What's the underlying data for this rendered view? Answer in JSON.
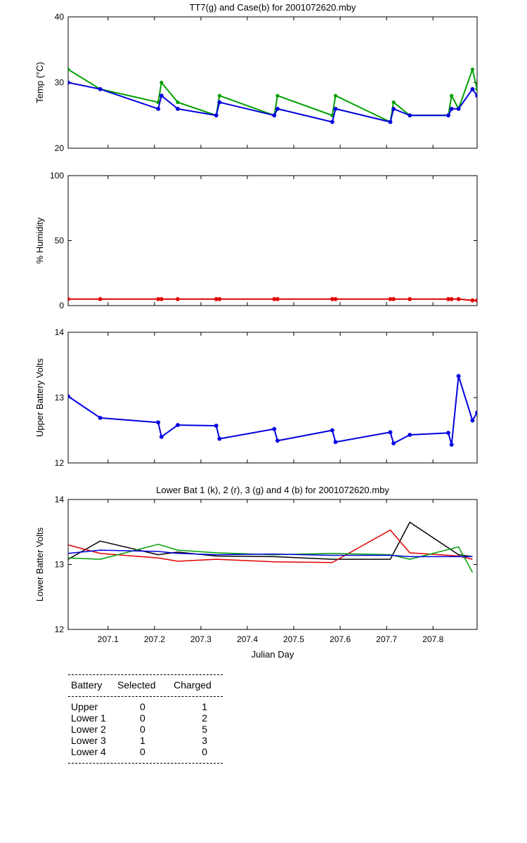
{
  "chart_data": [
    {
      "type": "line",
      "title": "TT7(g) and Case(b) for 2001072620.mby",
      "xlabel": "",
      "ylabel": "Temp  (°C)",
      "xlim": [
        207.014,
        207.895
      ],
      "ylim": [
        20,
        40
      ],
      "yticks": [
        20,
        30,
        40
      ],
      "xticks": [],
      "grid": false,
      "series": [
        {
          "color": "#00a000",
          "marker": "dot",
          "x": [
            207.014,
            207.083,
            207.208,
            207.215,
            207.25,
            207.333,
            207.34,
            207.458,
            207.465,
            207.583,
            207.59,
            207.708,
            207.715,
            207.75,
            207.833,
            207.84,
            207.855,
            207.885,
            207.895
          ],
          "y": [
            32,
            29,
            27,
            30,
            27,
            25,
            28,
            25,
            28,
            25,
            28,
            24,
            27,
            25,
            25,
            28,
            26,
            32,
            29
          ]
        },
        {
          "color": "#0000e0",
          "marker": "star",
          "x": [
            207.014,
            207.083,
            207.208,
            207.215,
            207.25,
            207.333,
            207.34,
            207.458,
            207.465,
            207.583,
            207.59,
            207.708,
            207.715,
            207.75,
            207.833,
            207.84,
            207.855,
            207.885,
            207.895
          ],
          "y": [
            30,
            29,
            26,
            28,
            26,
            25,
            27,
            25,
            26,
            24,
            26,
            24,
            26,
            25,
            25,
            26,
            26,
            29,
            28
          ]
        }
      ]
    },
    {
      "type": "line",
      "title": "",
      "xlabel": "",
      "ylabel": "% Humidity",
      "xlim": [
        207.014,
        207.895
      ],
      "ylim": [
        0,
        100
      ],
      "yticks": [
        0,
        50,
        100
      ],
      "xticks": [],
      "grid": false,
      "series": [
        {
          "color": "#e00000",
          "marker": "star",
          "x": [
            207.014,
            207.083,
            207.208,
            207.215,
            207.25,
            207.333,
            207.34,
            207.458,
            207.465,
            207.583,
            207.59,
            207.708,
            207.715,
            207.75,
            207.833,
            207.84,
            207.855,
            207.885,
            207.895
          ],
          "y": [
            5,
            5,
            5,
            5,
            5,
            5,
            5,
            5,
            5,
            5,
            5,
            5,
            5,
            5,
            5,
            5,
            5,
            4,
            4
          ]
        }
      ]
    },
    {
      "type": "line",
      "title": "",
      "xlabel": "",
      "ylabel": "Upper Battery Volts",
      "xlim": [
        207.014,
        207.895
      ],
      "ylim": [
        12,
        14
      ],
      "yticks": [
        12,
        13,
        14
      ],
      "xticks": [],
      "grid": false,
      "series": [
        {
          "color": "#0000e0",
          "marker": "star",
          "x": [
            207.014,
            207.083,
            207.208,
            207.215,
            207.25,
            207.333,
            207.34,
            207.458,
            207.465,
            207.583,
            207.59,
            207.708,
            207.715,
            207.75,
            207.833,
            207.84,
            207.855,
            207.885,
            207.895
          ],
          "y": [
            13.02,
            12.69,
            12.62,
            12.4,
            12.58,
            12.57,
            12.37,
            12.52,
            12.34,
            12.5,
            12.32,
            12.47,
            12.3,
            12.43,
            12.46,
            12.28,
            13.33,
            12.65,
            12.77
          ]
        }
      ]
    },
    {
      "type": "line",
      "title": "Lower Bat 1 (k), 2 (r), 3 (g) and 4 (b) for 2001072620.mby",
      "xlabel": "Julian Day",
      "ylabel": "Lower Batter Volts",
      "xlim": [
        207.014,
        207.895
      ],
      "ylim": [
        12,
        14
      ],
      "yticks": [
        12,
        13,
        14
      ],
      "xticks": [
        207.1,
        207.2,
        207.3,
        207.4,
        207.5,
        207.6,
        207.7,
        207.8
      ],
      "xtick_labels": [
        "207.1",
        "207.2",
        "207.3",
        "207.4",
        "207.5",
        "207.6",
        "207.7",
        "207.8"
      ],
      "grid": false,
      "series": [
        {
          "color": "#000000",
          "marker": "none",
          "x": [
            207.014,
            207.083,
            207.208,
            207.25,
            207.333,
            207.458,
            207.583,
            207.708,
            207.75,
            207.855,
            207.885
          ],
          "y": [
            13.08,
            13.36,
            13.15,
            13.19,
            13.13,
            13.12,
            13.08,
            13.08,
            13.65,
            13.15,
            13.12
          ]
        },
        {
          "color": "#e00000",
          "marker": "none",
          "x": [
            207.014,
            207.083,
            207.208,
            207.25,
            207.333,
            207.458,
            207.583,
            207.708,
            207.75,
            207.855,
            207.885
          ],
          "y": [
            13.3,
            13.17,
            13.1,
            13.05,
            13.08,
            13.04,
            13.03,
            13.53,
            13.18,
            13.13,
            13.08
          ]
        },
        {
          "color": "#00a000",
          "marker": "none",
          "x": [
            207.014,
            207.083,
            207.208,
            207.25,
            207.333,
            207.458,
            207.583,
            207.708,
            207.75,
            207.855,
            207.885
          ],
          "y": [
            13.1,
            13.08,
            13.31,
            13.22,
            13.18,
            13.15,
            13.17,
            13.15,
            13.08,
            13.27,
            12.88
          ]
        },
        {
          "color": "#0000e0",
          "marker": "none",
          "x": [
            207.014,
            207.083,
            207.208,
            207.25,
            207.333,
            207.458,
            207.583,
            207.708,
            207.75,
            207.855,
            207.885
          ],
          "y": [
            13.17,
            13.22,
            13.2,
            13.17,
            13.15,
            13.16,
            13.14,
            13.14,
            13.12,
            13.12,
            13.12
          ]
        }
      ]
    }
  ],
  "summary": {
    "headers": [
      "Battery",
      "Selected",
      "Charged"
    ],
    "rows": [
      {
        "battery": "Upper",
        "selected": "0",
        "charged": "1"
      },
      {
        "battery": "Lower 1",
        "selected": "0",
        "charged": "2"
      },
      {
        "battery": "Lower 2",
        "selected": "0",
        "charged": "5"
      },
      {
        "battery": "Lower 3",
        "selected": "1",
        "charged": "3"
      },
      {
        "battery": "Lower 4",
        "selected": "0",
        "charged": "0"
      }
    ]
  }
}
